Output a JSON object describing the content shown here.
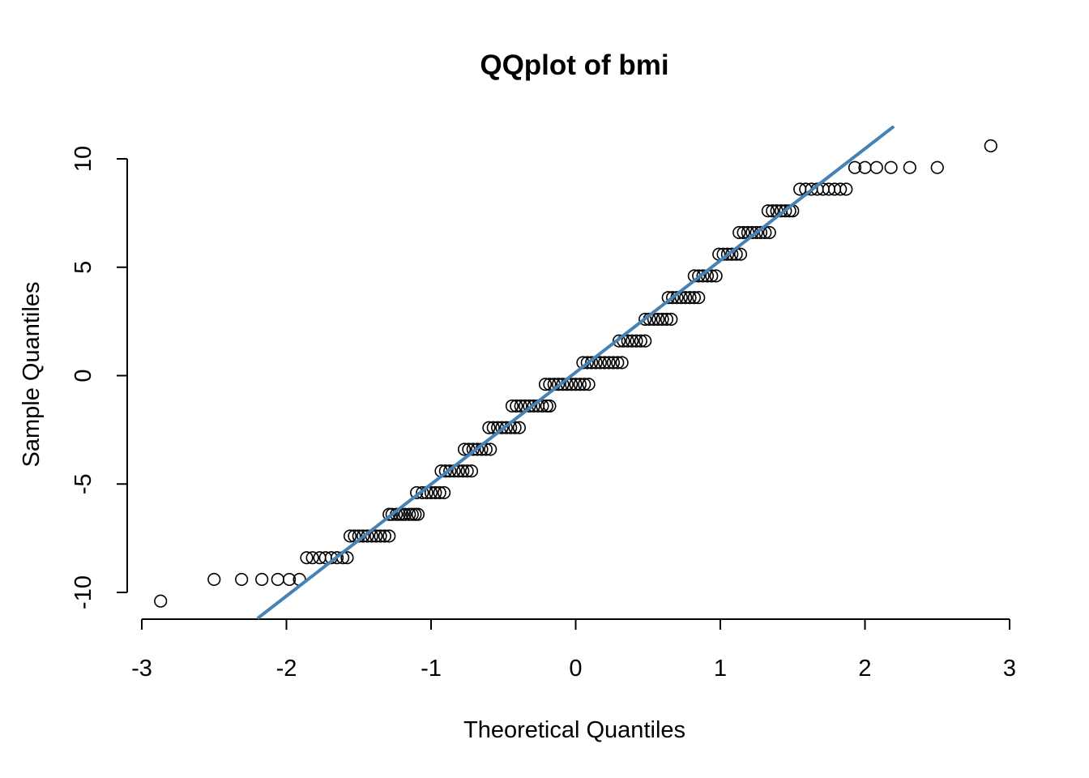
{
  "chart_data": {
    "type": "scatter",
    "title": "QQplot of bmi",
    "xlabel": "Theoretical Quantiles",
    "ylabel": "Sample Quantiles",
    "xlim": [
      -3,
      3
    ],
    "ylim": [
      -10,
      10
    ],
    "x_ticks": [
      -3,
      -2,
      -1,
      0,
      1,
      2,
      3
    ],
    "y_ticks": [
      -10,
      -5,
      0,
      5,
      10
    ],
    "x_tick_labels": [
      "-3",
      "-2",
      "-1",
      "0",
      "1",
      "2",
      "3"
    ],
    "y_tick_labels": [
      "-10",
      "-5",
      "0",
      "5",
      "10"
    ],
    "grid": false,
    "point_marker": "open-circle",
    "point_color": "#000000",
    "reference_line": {
      "color": "#4682B4",
      "x": [
        -2.2,
        2.2
      ],
      "y": [
        -11.2,
        11.5
      ]
    },
    "series": [
      {
        "groups": [
          {
            "y": -10.4,
            "x": [
              -2.87
            ]
          },
          {
            "y": -9.4,
            "x": [
              -2.5,
              -2.31,
              -2.17,
              -2.06,
              -1.98,
              -1.91
            ]
          },
          {
            "y": -8.4,
            "x": [
              -1.86,
              -1.82,
              -1.77,
              -1.73,
              -1.69,
              -1.65,
              -1.61,
              -1.58
            ]
          },
          {
            "y": -7.4,
            "x": [
              -1.56,
              -1.53,
              -1.5,
              -1.47,
              -1.44,
              -1.41,
              -1.38,
              -1.35,
              -1.32,
              -1.29
            ]
          },
          {
            "y": -6.4,
            "x": [
              -1.29,
              -1.27,
              -1.24,
              -1.22,
              -1.2,
              -1.18,
              -1.15,
              -1.13,
              -1.11,
              -1.09
            ]
          },
          {
            "y": -5.4,
            "x": [
              -1.1,
              -1.06,
              -1.03,
              -1.0,
              -0.97,
              -0.94,
              -0.91
            ]
          },
          {
            "y": -4.4,
            "x": [
              -0.93,
              -0.9,
              -0.87,
              -0.84,
              -0.81,
              -0.78,
              -0.75,
              -0.72
            ]
          },
          {
            "y": -3.4,
            "x": [
              -0.77,
              -0.74,
              -0.71,
              -0.68,
              -0.65,
              -0.62,
              -0.59
            ]
          },
          {
            "y": -2.4,
            "x": [
              -0.6,
              -0.57,
              -0.54,
              -0.51,
              -0.48,
              -0.45,
              -0.42,
              -0.39
            ]
          },
          {
            "y": -1.4,
            "x": [
              -0.44,
              -0.41,
              -0.38,
              -0.35,
              -0.32,
              -0.29,
              -0.26,
              -0.23,
              -0.2,
              -0.18
            ]
          },
          {
            "y": -0.4,
            "x": [
              -0.21,
              -0.18,
              -0.15,
              -0.12,
              -0.09,
              -0.06,
              -0.03,
              0.0,
              0.03,
              0.06,
              0.09
            ]
          },
          {
            "y": 0.6,
            "x": [
              0.05,
              0.08,
              0.11,
              0.14,
              0.17,
              0.2,
              0.23,
              0.26,
              0.29,
              0.32
            ]
          },
          {
            "y": 1.6,
            "x": [
              0.3,
              0.33,
              0.36,
              0.39,
              0.42,
              0.45,
              0.48
            ]
          },
          {
            "y": 2.6,
            "x": [
              0.48,
              0.51,
              0.54,
              0.57,
              0.6,
              0.63,
              0.66
            ]
          },
          {
            "y": 3.6,
            "x": [
              0.64,
              0.67,
              0.7,
              0.73,
              0.76,
              0.79,
              0.82,
              0.85
            ]
          },
          {
            "y": 4.6,
            "x": [
              0.82,
              0.85,
              0.88,
              0.91,
              0.94,
              0.97
            ]
          },
          {
            "y": 5.6,
            "x": [
              0.99,
              1.02,
              1.05,
              1.08,
              1.11,
              1.14
            ]
          },
          {
            "y": 6.6,
            "x": [
              1.13,
              1.16,
              1.19,
              1.22,
              1.25,
              1.28,
              1.31,
              1.34
            ]
          },
          {
            "y": 7.6,
            "x": [
              1.33,
              1.36,
              1.39,
              1.42,
              1.45,
              1.48,
              1.5
            ]
          },
          {
            "y": 8.6,
            "x": [
              1.55,
              1.59,
              1.63,
              1.67,
              1.71,
              1.75,
              1.79,
              1.83,
              1.87
            ]
          },
          {
            "y": 9.6,
            "x": [
              1.93,
              2.0,
              2.08,
              2.18,
              2.31,
              2.5
            ]
          },
          {
            "y": 10.6,
            "x": [
              2.87
            ]
          }
        ]
      }
    ]
  }
}
